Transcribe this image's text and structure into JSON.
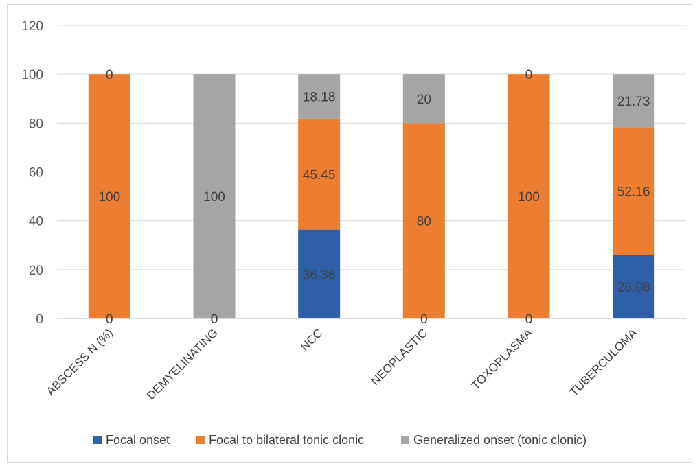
{
  "chart_data": {
    "type": "bar",
    "stacked": true,
    "title": "",
    "xlabel": "",
    "ylabel": "",
    "ylim": [
      0,
      120
    ],
    "yticks": [
      0,
      20,
      40,
      60,
      80,
      100,
      120
    ],
    "grid": true,
    "legend_position": "bottom",
    "categories": [
      "ABSCESS N (%)",
      "DEMYELINATING",
      "NCC",
      "NEOPLASTIC",
      "TOXOPLASMA",
      "TUBERCULOMA"
    ],
    "series": [
      {
        "name": "Focal onset",
        "color": "#2e5fa8",
        "values": [
          0,
          0,
          36.36,
          0,
          0,
          26.08
        ],
        "labels": [
          "0",
          "0",
          "36.36",
          "0",
          "0",
          "26.08"
        ]
      },
      {
        "name": "Focal to bilateral tonic clonic",
        "color": "#ed7d31",
        "values": [
          100,
          0,
          45.45,
          80,
          100,
          52.16
        ],
        "labels": [
          "100",
          "0",
          "45.45",
          "80",
          "100",
          "52.16"
        ]
      },
      {
        "name": "Generalized onset (tonic clonic)",
        "color": "#a5a5a5",
        "values": [
          0,
          100,
          18.18,
          20,
          0,
          21.73
        ],
        "labels": [
          "0",
          "100",
          "18.18",
          "20",
          "0",
          "21.73"
        ]
      }
    ]
  }
}
